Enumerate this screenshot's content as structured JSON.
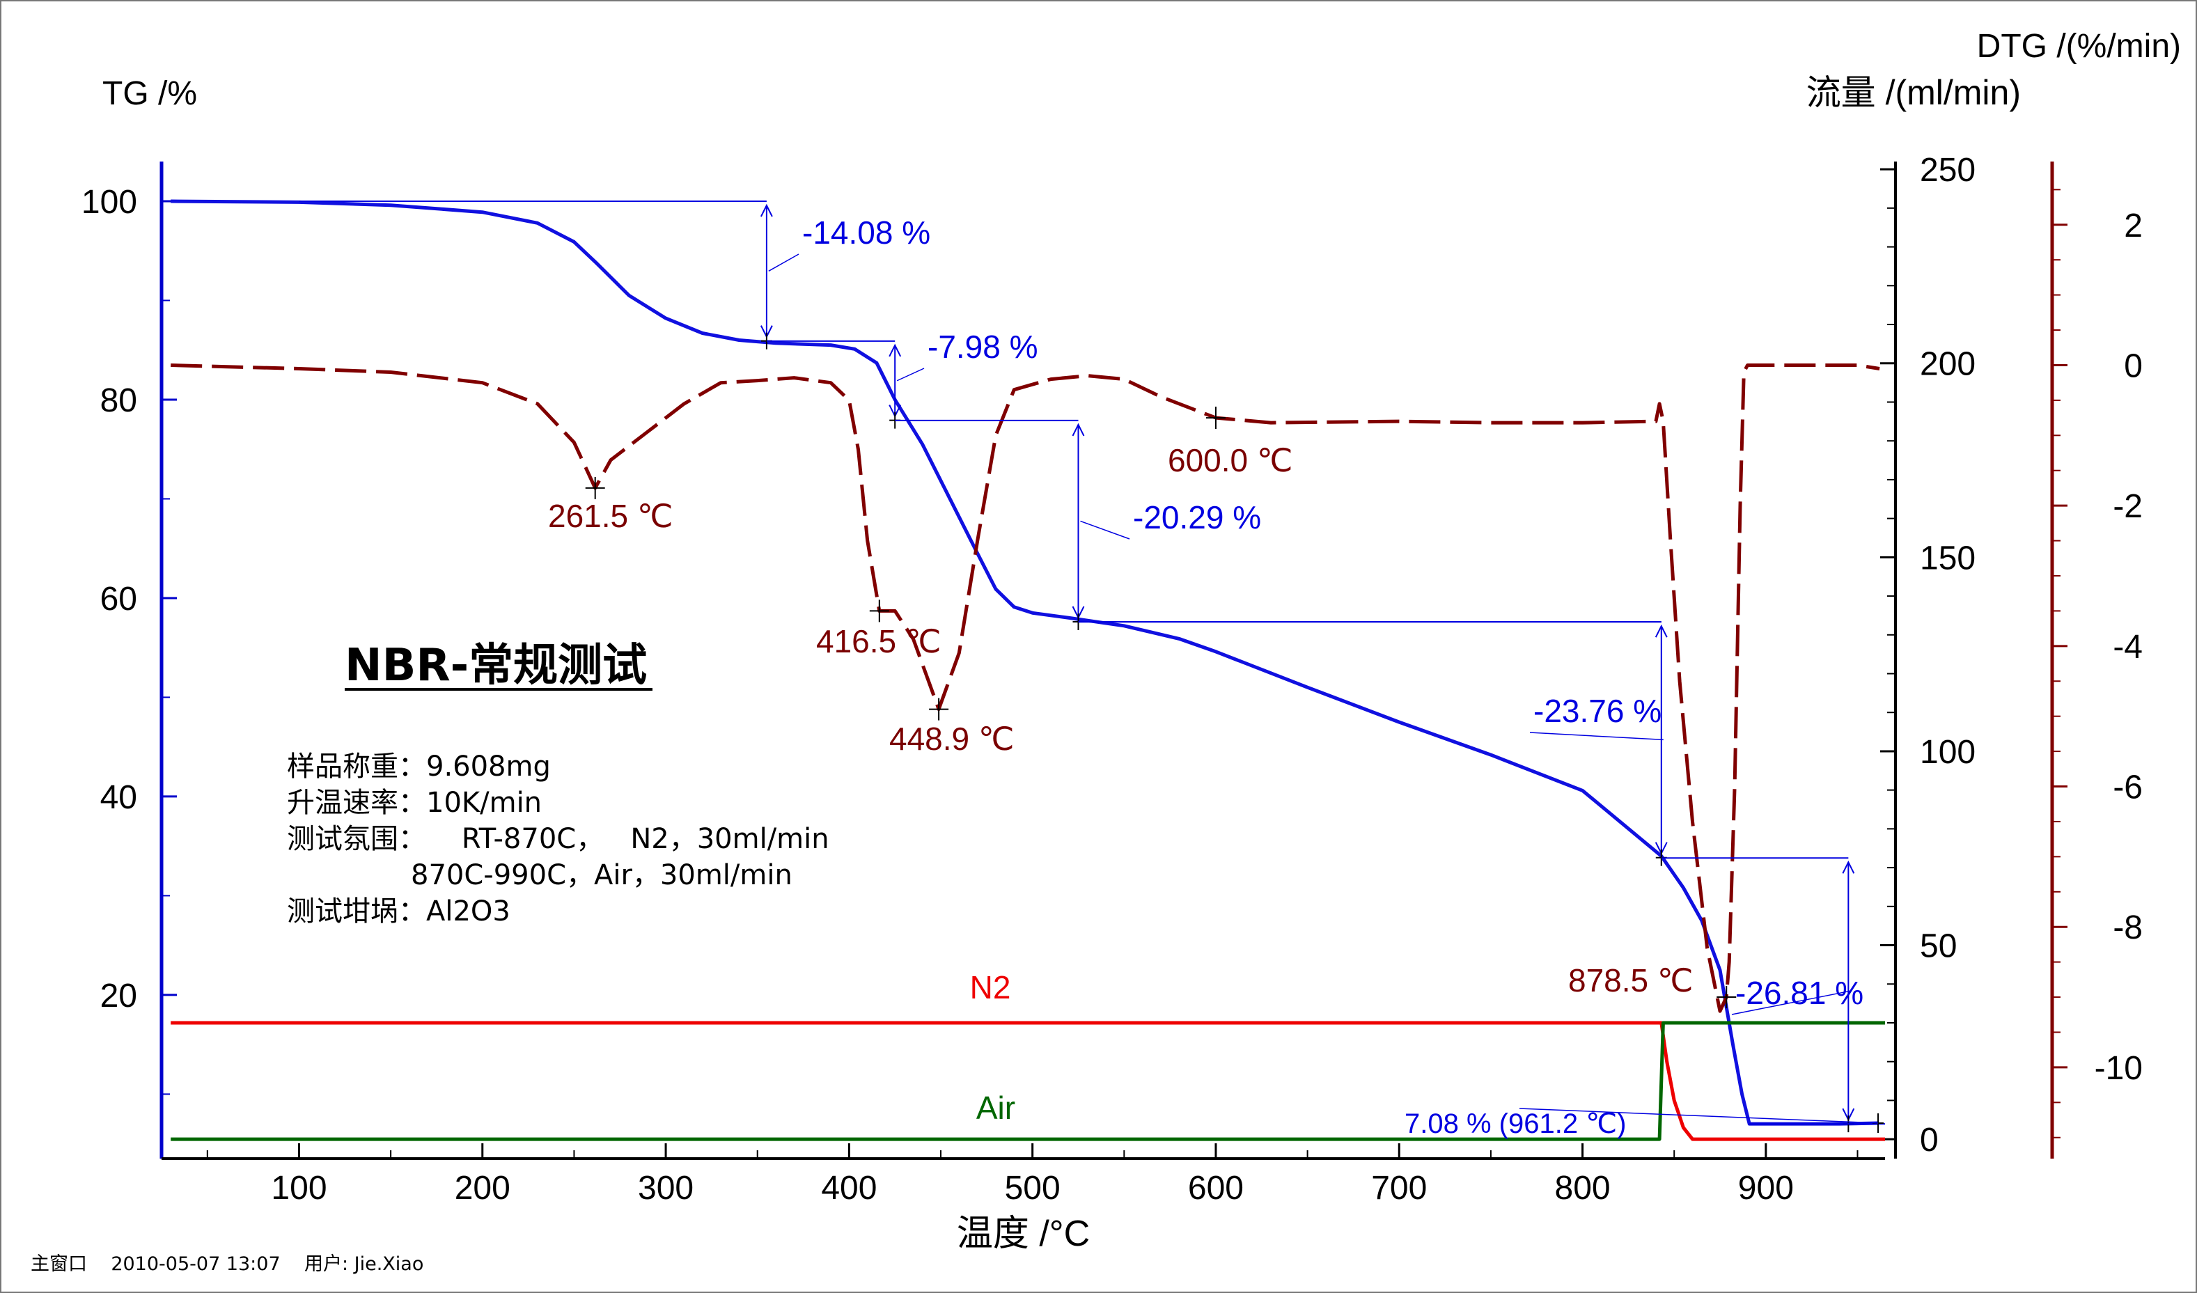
{
  "chart_data": {
    "type": "line",
    "axes": {
      "x": {
        "label": "温度 /°C",
        "range": [
          25,
          965
        ],
        "ticks": [
          100,
          200,
          300,
          400,
          500,
          600,
          700,
          800,
          900
        ]
      },
      "y_tg": {
        "label": "TG /%",
        "range": [
          3.5,
          104
        ],
        "ticks": [
          20,
          40,
          60,
          80,
          100
        ]
      },
      "y_flow": {
        "label": "流量 /(ml/min)",
        "range": [
          -5,
          252
        ],
        "ticks": [
          0,
          50,
          100,
          150,
          200,
          250
        ]
      },
      "y_dtg": {
        "label": "DTG /(%/min)",
        "range": [
          -11.3,
          2.9
        ],
        "ticks": [
          2,
          0,
          -2,
          -4,
          -6,
          -8,
          -10
        ]
      }
    },
    "grid": false,
    "series": [
      {
        "key": "tg",
        "axis": "y_tg",
        "color": "#1010e0",
        "style": "solid",
        "points": [
          [
            30,
            100
          ],
          [
            100,
            99.9
          ],
          [
            150,
            99.6
          ],
          [
            200,
            98.9
          ],
          [
            230,
            97.8
          ],
          [
            250,
            95.9
          ],
          [
            262,
            93.8
          ],
          [
            280,
            90.5
          ],
          [
            300,
            88.2
          ],
          [
            320,
            86.7
          ],
          [
            340,
            86.0
          ],
          [
            360,
            85.7
          ],
          [
            390,
            85.5
          ],
          [
            403,
            85.1
          ],
          [
            415,
            83.7
          ],
          [
            425,
            80.0
          ],
          [
            440,
            75.5
          ],
          [
            455,
            70.0
          ],
          [
            470,
            64.5
          ],
          [
            480,
            60.9
          ],
          [
            490,
            59.1
          ],
          [
            500,
            58.5
          ],
          [
            520,
            58.0
          ],
          [
            550,
            57.2
          ],
          [
            580,
            55.9
          ],
          [
            600,
            54.6
          ],
          [
            650,
            51.0
          ],
          [
            700,
            47.5
          ],
          [
            750,
            44.2
          ],
          [
            800,
            40.6
          ],
          [
            843,
            34.0
          ],
          [
            855,
            30.8
          ],
          [
            865,
            27.5
          ],
          [
            875,
            22.5
          ],
          [
            882,
            15.0
          ],
          [
            887,
            10.0
          ],
          [
            891,
            7.0
          ],
          [
            900,
            7.0
          ],
          [
            940,
            7.0
          ],
          [
            961.2,
            7.08
          ]
        ]
      },
      {
        "key": "dtg",
        "axis": "y_dtg",
        "color": "#800000",
        "style": "dashed",
        "points": [
          [
            30,
            0
          ],
          [
            100,
            -0.05
          ],
          [
            150,
            -0.1
          ],
          [
            200,
            -0.25
          ],
          [
            230,
            -0.55
          ],
          [
            250,
            -1.1
          ],
          [
            261.5,
            -1.75
          ],
          [
            270,
            -1.35
          ],
          [
            290,
            -0.95
          ],
          [
            310,
            -0.55
          ],
          [
            330,
            -0.25
          ],
          [
            350,
            -0.22
          ],
          [
            370,
            -0.18
          ],
          [
            390,
            -0.25
          ],
          [
            400,
            -0.5
          ],
          [
            405,
            -1.2
          ],
          [
            410,
            -2.5
          ],
          [
            416.5,
            -3.5
          ],
          [
            425,
            -3.5
          ],
          [
            435,
            -3.9
          ],
          [
            448.9,
            -4.9
          ],
          [
            460,
            -4.1
          ],
          [
            470,
            -2.5
          ],
          [
            480,
            -1.0
          ],
          [
            490,
            -0.35
          ],
          [
            510,
            -0.2
          ],
          [
            530,
            -0.15
          ],
          [
            550,
            -0.2
          ],
          [
            570,
            -0.45
          ],
          [
            600,
            -0.75
          ],
          [
            630,
            -0.82
          ],
          [
            700,
            -0.8
          ],
          [
            750,
            -0.82
          ],
          [
            800,
            -0.82
          ],
          [
            840,
            -0.8
          ],
          [
            842,
            -0.55
          ],
          [
            844,
            -0.8
          ],
          [
            848,
            -2.5
          ],
          [
            853,
            -4.5
          ],
          [
            860,
            -6.5
          ],
          [
            868,
            -8.3
          ],
          [
            875,
            -9.2
          ],
          [
            878.5,
            -9.0
          ],
          [
            880,
            -8.5
          ],
          [
            883,
            -6.0
          ],
          [
            886,
            -2.0
          ],
          [
            888,
            -0.1
          ],
          [
            890,
            0.0
          ],
          [
            950,
            0.0
          ],
          [
            962,
            -0.05
          ]
        ]
      },
      {
        "key": "n2",
        "axis": "y_flow",
        "color": "#ee0000",
        "style": "solid",
        "points": [
          [
            30,
            30
          ],
          [
            843,
            30
          ],
          [
            846,
            20
          ],
          [
            850,
            10
          ],
          [
            855,
            3
          ],
          [
            860,
            0
          ],
          [
            965,
            0
          ]
        ]
      },
      {
        "key": "air",
        "axis": "y_flow",
        "color": "#006600",
        "style": "solid",
        "points": [
          [
            30,
            0
          ],
          [
            842,
            0
          ],
          [
            844,
            30
          ],
          [
            965,
            30
          ]
        ]
      }
    ],
    "peak_markers": [
      {
        "x": 261.5,
        "y": -1.75,
        "text": "261.5 ℃"
      },
      {
        "x": 416.5,
        "y": -3.5,
        "text": "416.5 ℃"
      },
      {
        "x": 448.9,
        "y": -4.9,
        "text": "448.9 ℃"
      },
      {
        "x": 600.0,
        "y": -0.75,
        "text": "600.0 ℃"
      },
      {
        "x": 878.5,
        "y": -9.0,
        "text": "878.5 ℃"
      }
    ],
    "steps": [
      {
        "x": 355,
        "from": 100,
        "to": 85.92,
        "hline_from": 100,
        "hline_to": 85.92,
        "text": "-14.08 %"
      },
      {
        "x": 425,
        "from": 85.9,
        "to": 77.92,
        "text": "-7.98 %"
      },
      {
        "x": 525,
        "from": 77.9,
        "to": 57.61,
        "text": "-20.29 %"
      },
      {
        "x": 843,
        "from": 57.6,
        "to": 33.84,
        "text": "-23.76 %"
      },
      {
        "x": 945,
        "from": 33.8,
        "to": 7.0,
        "text": "-26.81 %"
      }
    ],
    "residue": {
      "x": 961.2,
      "y": 7.08,
      "text": "7.08 % (961.2 ℃)"
    },
    "curve_labels": {
      "n2": "N2",
      "air": "Air"
    },
    "title": "NBR-常规测试",
    "info": [
      "样品称重：9.608mg",
      "升温速率：10K/min",
      "测试氛围：    RT-870C，   N2，30ml/min",
      "              870C-990C，Air，30ml/min",
      "测试坩埚：Al2O3"
    ]
  },
  "footer": "主窗口    2010-05-07 13:07    用户: Jie.Xiao"
}
